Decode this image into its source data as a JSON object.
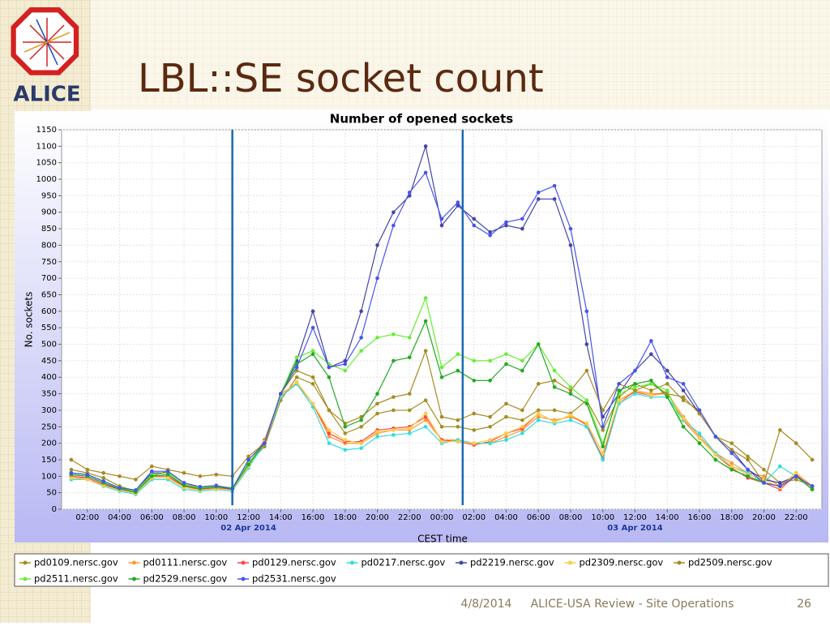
{
  "slide": {
    "title": "LBL::SE socket count",
    "logo_text": "ALICE",
    "footer_date": "4/8/2014",
    "footer_text": "ALICE-USA Review - Site Operations",
    "page_number": "26"
  },
  "chart_data": {
    "type": "line",
    "title": "Number of opened sockets",
    "x_label": "CEST time",
    "y_label": "No. sockets",
    "x": [
      1,
      2,
      3,
      4,
      5,
      6,
      7,
      8,
      9,
      10,
      11,
      12,
      13,
      14,
      15,
      16,
      17,
      18,
      19,
      20,
      21,
      22,
      23,
      24,
      25,
      26,
      27,
      28,
      29,
      30,
      31,
      32,
      33,
      34,
      35,
      36,
      37,
      38,
      39,
      40,
      41,
      42,
      43,
      44,
      45,
      46,
      47
    ],
    "xlim": [
      0.4,
      47.6
    ],
    "xticks": [
      {
        "value": 2,
        "label": "02:00"
      },
      {
        "value": 4,
        "label": "04:00"
      },
      {
        "value": 6,
        "label": "06:00"
      },
      {
        "value": 8,
        "label": "08:00"
      },
      {
        "value": 10,
        "label": "10:00"
      },
      {
        "value": 12,
        "label": "12:00"
      },
      {
        "value": 14,
        "label": "14:00"
      },
      {
        "value": 16,
        "label": "16:00"
      },
      {
        "value": 18,
        "label": "18:00"
      },
      {
        "value": 20,
        "label": "20:00"
      },
      {
        "value": 22,
        "label": "22:00"
      },
      {
        "value": 24,
        "label": "00:00"
      },
      {
        "value": 26,
        "label": "02:00"
      },
      {
        "value": 28,
        "label": "04:00"
      },
      {
        "value": 30,
        "label": "06:00"
      },
      {
        "value": 32,
        "label": "08:00"
      },
      {
        "value": 34,
        "label": "10:00"
      },
      {
        "value": 36,
        "label": "12:00"
      },
      {
        "value": 38,
        "label": "14:00"
      },
      {
        "value": 40,
        "label": "16:00"
      },
      {
        "value": 42,
        "label": "18:00"
      },
      {
        "value": 44,
        "label": "20:00"
      },
      {
        "value": 46,
        "label": "22:00"
      }
    ],
    "date_labels": [
      {
        "value": 12,
        "label": "02 Apr 2014"
      },
      {
        "value": 36,
        "label": "03 Apr 2014"
      }
    ],
    "markers": [
      11,
      25.3
    ],
    "ylim": [
      0,
      1150
    ],
    "yticks": [
      0,
      50,
      100,
      150,
      200,
      250,
      300,
      350,
      400,
      450,
      500,
      550,
      600,
      650,
      700,
      750,
      800,
      850,
      900,
      950,
      1000,
      1050,
      1100,
      1150
    ],
    "grid": true,
    "legend": "bottom",
    "series": [
      {
        "name": "pd0109.nersc.gov",
        "color": "#a09020",
        "values": [
          120,
          110,
          95,
          70,
          55,
          100,
          115,
          80,
          65,
          70,
          65,
          140,
          190,
          330,
          400,
          380,
          300,
          230,
          250,
          290,
          300,
          300,
          330,
          250,
          250,
          240,
          250,
          280,
          270,
          300,
          300,
          290,
          330,
          240,
          340,
          380,
          360,
          380,
          330,
          300,
          220,
          200,
          160,
          120,
          80,
          90,
          70
        ]
      },
      {
        "name": "pd0111.nersc.gov",
        "color": "#ff9933",
        "values": [
          95,
          95,
          75,
          60,
          50,
          95,
          95,
          70,
          60,
          65,
          60,
          130,
          200,
          350,
          380,
          320,
          220,
          200,
          200,
          230,
          240,
          240,
          270,
          210,
          210,
          200,
          200,
          220,
          240,
          280,
          270,
          280,
          260,
          170,
          320,
          360,
          350,
          350,
          280,
          220,
          170,
          140,
          110,
          100,
          70,
          110,
          70
        ]
      },
      {
        "name": "pd0129.nersc.gov",
        "color": "#ff4444",
        "values": [
          100,
          95,
          75,
          60,
          48,
          100,
          100,
          70,
          60,
          65,
          60,
          135,
          210,
          345,
          385,
          320,
          230,
          205,
          205,
          240,
          245,
          250,
          280,
          210,
          205,
          195,
          205,
          230,
          245,
          290,
          265,
          285,
          255,
          155,
          330,
          355,
          345,
          355,
          270,
          215,
          165,
          125,
          95,
          80,
          60,
          105,
          65
        ]
      },
      {
        "name": "pd0217.nersc.gov",
        "color": "#33dddd",
        "values": [
          90,
          90,
          70,
          55,
          45,
          90,
          90,
          60,
          55,
          60,
          55,
          125,
          200,
          340,
          380,
          310,
          200,
          180,
          185,
          220,
          225,
          230,
          250,
          200,
          210,
          200,
          200,
          210,
          230,
          270,
          260,
          270,
          250,
          150,
          320,
          350,
          340,
          340,
          270,
          230,
          170,
          130,
          110,
          80,
          130,
          100,
          60
        ]
      },
      {
        "name": "pd2219.nersc.gov",
        "color": "#4444aa",
        "values": [
          105,
          100,
          80,
          60,
          55,
          110,
          110,
          75,
          65,
          70,
          60,
          140,
          200,
          350,
          450,
          600,
          430,
          450,
          600,
          800,
          900,
          950,
          1100,
          860,
          920,
          880,
          840,
          860,
          850,
          940,
          940,
          800,
          500,
          280,
          350,
          420,
          470,
          420,
          360,
          290,
          220,
          180,
          120,
          90,
          80,
          100,
          70
        ]
      },
      {
        "name": "pd2309.nersc.gov",
        "color": "#ffcc44",
        "values": [
          95,
          90,
          72,
          58,
          48,
          95,
          95,
          65,
          58,
          62,
          58,
          130,
          205,
          345,
          385,
          320,
          240,
          210,
          200,
          235,
          240,
          245,
          290,
          205,
          205,
          200,
          210,
          230,
          250,
          290,
          265,
          285,
          260,
          170,
          330,
          360,
          345,
          350,
          275,
          215,
          165,
          130,
          105,
          90,
          65,
          110,
          65
        ]
      },
      {
        "name": "pd2509.nersc.gov",
        "color": "#aa8822",
        "values": [
          150,
          120,
          110,
          100,
          90,
          130,
          120,
          110,
          100,
          105,
          100,
          160,
          200,
          350,
          420,
          400,
          300,
          260,
          280,
          320,
          340,
          350,
          480,
          280,
          270,
          290,
          280,
          320,
          300,
          380,
          390,
          360,
          420,
          300,
          380,
          360,
          380,
          350,
          340,
          290,
          220,
          180,
          150,
          80,
          240,
          200,
          150
        ]
      },
      {
        "name": "pd2511.nersc.gov",
        "color": "#66ee33",
        "values": [
          110,
          105,
          85,
          65,
          55,
          105,
          110,
          75,
          65,
          70,
          65,
          140,
          200,
          350,
          460,
          480,
          440,
          420,
          480,
          520,
          530,
          520,
          640,
          430,
          470,
          450,
          450,
          470,
          450,
          500,
          420,
          370,
          330,
          200,
          350,
          370,
          380,
          360,
          250,
          200,
          150,
          120,
          100,
          80,
          70,
          100,
          60
        ]
      },
      {
        "name": "pd2529.nersc.gov",
        "color": "#22aa22",
        "values": [
          105,
          100,
          80,
          62,
          52,
          100,
          105,
          72,
          62,
          68,
          62,
          135,
          200,
          350,
          440,
          470,
          400,
          250,
          270,
          350,
          450,
          460,
          570,
          400,
          420,
          390,
          390,
          440,
          420,
          500,
          370,
          350,
          320,
          190,
          360,
          380,
          390,
          340,
          250,
          200,
          150,
          120,
          100,
          80,
          70,
          100,
          60
        ]
      },
      {
        "name": "pd2531.nersc.gov",
        "color": "#4455ee",
        "values": [
          110,
          105,
          85,
          65,
          58,
          115,
          115,
          80,
          68,
          72,
          62,
          150,
          200,
          350,
          430,
          550,
          430,
          440,
          520,
          700,
          860,
          960,
          1020,
          880,
          930,
          860,
          830,
          870,
          880,
          960,
          980,
          850,
          600,
          250,
          380,
          420,
          510,
          400,
          380,
          300,
          220,
          170,
          120,
          80,
          70,
          100,
          70
        ]
      }
    ]
  }
}
